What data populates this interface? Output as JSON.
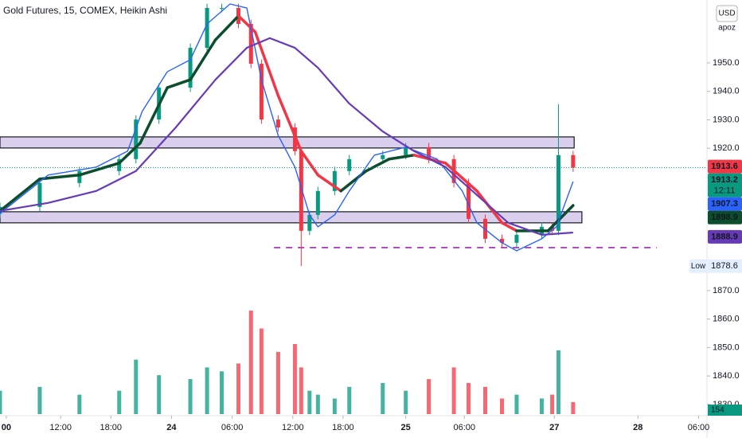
{
  "chart_data": {
    "type": "candlestick",
    "title": "Gold Futures, 15, COMEX, Heikin Ashi",
    "currency": "USD",
    "scale_button": "apoz",
    "xlim": [
      0,
      338
    ],
    "xticks": [
      {
        "value": 3,
        "label": "00"
      },
      {
        "value": 29,
        "label": "12:00"
      },
      {
        "value": 53,
        "label": "18:00"
      },
      {
        "value": 82,
        "label": "24"
      },
      {
        "value": 111,
        "label": "06:00"
      },
      {
        "value": 140,
        "label": "12:00"
      },
      {
        "value": 164,
        "label": "18:00"
      },
      {
        "value": 194,
        "label": "25"
      },
      {
        "value": 222,
        "label": "06:00"
      },
      {
        "value": 265,
        "label": "27"
      },
      {
        "value": 305,
        "label": "28"
      },
      {
        "value": 334,
        "label": "06:00"
      }
    ],
    "ylim": [
      1826.6,
      1972.1
    ],
    "yticks": [
      {
        "value": 1950,
        "label": "1950.0"
      },
      {
        "value": 1940,
        "label": "1940.0"
      },
      {
        "value": 1930,
        "label": "1930.0"
      },
      {
        "value": 1920,
        "label": "1920.0"
      },
      {
        "value": 1870,
        "label": "1870.0"
      },
      {
        "value": 1860,
        "label": "1860.0"
      },
      {
        "value": 1850,
        "label": "1850.0"
      },
      {
        "value": 1840,
        "label": "1840.0"
      },
      {
        "value": 1830,
        "label": "1830.0"
      }
    ],
    "grid": false,
    "up_color": "#089981",
    "down_color": "#f23645",
    "x": [
      0,
      19,
      38,
      57,
      65,
      76,
      91,
      99,
      106,
      114,
      120,
      125,
      133,
      141,
      144,
      148,
      152,
      160,
      167,
      183,
      194,
      205,
      217,
      224,
      232,
      240,
      247,
      259,
      264,
      267,
      274
    ],
    "open": [
      1897.0,
      1899.4,
      1907.8,
      1912.0,
      1916.2,
      1930.1,
      1941.3,
      1955.3,
      1969.3,
      1969.3,
      1963.7,
      1949.7,
      1930.1,
      1927.3,
      1919.0,
      1891.0,
      1896.6,
      1905.0,
      1912.0,
      1916.2,
      1917.6,
      1920.4,
      1916.2,
      1907.8,
      1895.2,
      1888.2,
      1886.8,
      1889.6,
      1892.4,
      1891.0,
      1917.6
    ],
    "high": [
      1900.9,
      1909.3,
      1913.5,
      1917.7,
      1931.6,
      1942.8,
      1956.8,
      1970.8,
      1970.8,
      1970.8,
      1965.2,
      1951.2,
      1931.6,
      1928.8,
      1920.5,
      1898.1,
      1906.5,
      1913.5,
      1917.7,
      1919.1,
      1921.9,
      1921.9,
      1917.7,
      1909.3,
      1896.7,
      1889.7,
      1891.1,
      1893.9,
      1893.9,
      1935.5,
      1919.1
    ],
    "low": [
      1895.5,
      1897.9,
      1906.3,
      1910.5,
      1914.7,
      1928.6,
      1939.8,
      1953.8,
      1967.8,
      1962.2,
      1948.2,
      1928.6,
      1925.8,
      1917.5,
      1878.6,
      1889.5,
      1895.1,
      1903.5,
      1910.5,
      1914.7,
      1916.1,
      1914.7,
      1906.3,
      1893.7,
      1886.7,
      1885.3,
      1885.3,
      1888.1,
      1889.5,
      1889.5,
      1911.7
    ],
    "close": [
      1899.4,
      1907.8,
      1912.0,
      1916.2,
      1930.1,
      1941.3,
      1955.3,
      1969.3,
      1969.3,
      1963.7,
      1949.7,
      1930.1,
      1927.3,
      1919.0,
      1891.0,
      1896.6,
      1905.0,
      1912.0,
      1916.2,
      1917.6,
      1920.4,
      1916.2,
      1907.8,
      1895.2,
      1888.2,
      1886.8,
      1889.6,
      1892.4,
      1891.0,
      1917.6,
      1913.2
    ],
    "volume": [
      300,
      350,
      250,
      300,
      700,
      500,
      450,
      600,
      550,
      650,
      1330,
      1100,
      800,
      900,
      600,
      300,
      250,
      200,
      350,
      400,
      300,
      450,
      600,
      400,
      350,
      200,
      250,
      200,
      250,
      820,
      154
    ],
    "lines": [
      {
        "color": "#0b4d2c",
        "down_color": "#f23645",
        "width": 3.5,
        "x": [
          0,
          19,
          38,
          57,
          67,
          80,
          91,
          103,
          114,
          122,
          133,
          144,
          152,
          163,
          175,
          186,
          198,
          213,
          228,
          240,
          247,
          262,
          274
        ],
        "values": [
          1898.0,
          1909.2,
          1910.6,
          1914.8,
          1921.8,
          1941.3,
          1944.1,
          1958.1,
          1966.5,
          1960.9,
          1938.5,
          1919.0,
          1910.6,
          1905.0,
          1912.0,
          1916.2,
          1917.6,
          1914.8,
          1905.0,
          1893.8,
          1891.0,
          1891.0,
          1899.9
        ]
      },
      {
        "color": "#2962ff",
        "width": 1.4,
        "x": [
          0,
          23,
          46,
          61,
          68,
          80,
          91,
          99,
          110,
          118,
          125,
          133,
          141,
          148,
          152,
          160,
          167,
          179,
          194,
          209,
          221,
          228,
          240,
          247,
          259,
          266,
          274
        ],
        "values": [
          1897.1,
          1910.6,
          1913.4,
          1919.0,
          1933.0,
          1946.9,
          1951.1,
          1963.7,
          1970.7,
          1969.3,
          1944.1,
          1924.5,
          1913.4,
          1896.6,
          1892.4,
          1896.6,
          1905.0,
          1917.6,
          1920.4,
          1916.2,
          1905.0,
          1893.8,
          1886.8,
          1884.0,
          1888.2,
          1892.4,
          1908.3
        ]
      },
      {
        "color": "#673ab7",
        "width": 2.2,
        "x": [
          0,
          23,
          46,
          65,
          84,
          103,
          118,
          129,
          141,
          152,
          167,
          183,
          198,
          213,
          228,
          243,
          259,
          274
        ],
        "values": [
          1898.0,
          1900.8,
          1905.0,
          1912.0,
          1927.3,
          1944.1,
          1955.3,
          1958.7,
          1955.3,
          1948.3,
          1935.7,
          1925.9,
          1919.0,
          1913.4,
          1903.6,
          1893.8,
          1889.6,
          1890.4
        ]
      }
    ],
    "zones": [
      {
        "high": 1924.0,
        "low": 1920.1,
        "x_end": 274.5,
        "color": "#d1c4e9"
      },
      {
        "high": 1897.7,
        "low": 1893.8,
        "x_end": 278.2,
        "color": "#d1c4e9"
      }
    ],
    "support": {
      "value": 1885.1,
      "x": [
        131,
        314
      ],
      "color": "#9c27b0"
    },
    "price_labels": [
      {
        "value": 1913.6,
        "color": "#f23645"
      },
      {
        "value": 1913.2,
        "color": "#089981",
        "countdown": "12:11"
      },
      {
        "value": 1907.3,
        "color": "#2962ff"
      },
      {
        "value": 1898.9,
        "color": "#0b4d2c"
      },
      {
        "value": 1888.9,
        "color": "#673ab7"
      }
    ],
    "low_label": {
      "text": "Low",
      "value": 1878.6
    }
  }
}
